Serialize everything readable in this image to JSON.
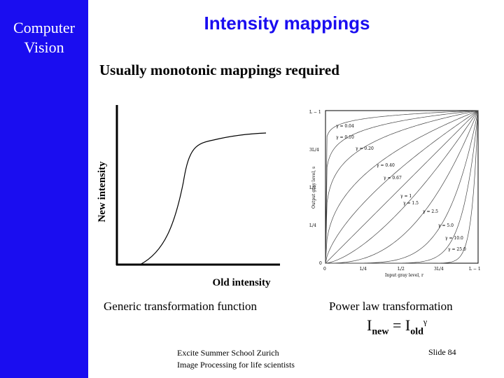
{
  "sidebar": {
    "line1": "Computer",
    "line2": "Vision",
    "color": "#1a0df0"
  },
  "slide": {
    "title": "Intensity mappings",
    "subtitle": "Usually monotonic mappings required"
  },
  "chart": {
    "ylabel": "New intensity",
    "xlabel": "Old intensity",
    "caption": "Generic transformation function"
  },
  "powerlaw": {
    "caption": "Power law transformation",
    "formula": {
      "base1": "I",
      "sub1": "new",
      "eq": " = ",
      "base2": "I",
      "sub2": "old",
      "sup": "γ"
    },
    "gammas": [
      "γ = 0.04",
      "γ = 0.10",
      "γ = 0.20",
      "γ = 0.40",
      "γ = 0.67",
      "γ = 1",
      "γ = 1.5",
      "γ = 2.5",
      "γ = 5.0",
      "γ = 10.0",
      "γ = 25.0"
    ],
    "yticks": [
      "L − 1",
      "3L/4",
      "L/2",
      "L/4",
      "0"
    ],
    "xticks": [
      "0",
      "L/4",
      "L/2",
      "3L/4",
      "L − 1"
    ],
    "ylabel": "Output gray level, s",
    "xlabel": "Input gray level, r"
  },
  "footer": {
    "line1": "Excite Summer School Zurich",
    "line2": "Image Processing for life scientists",
    "slide_number": "Slide 84"
  }
}
